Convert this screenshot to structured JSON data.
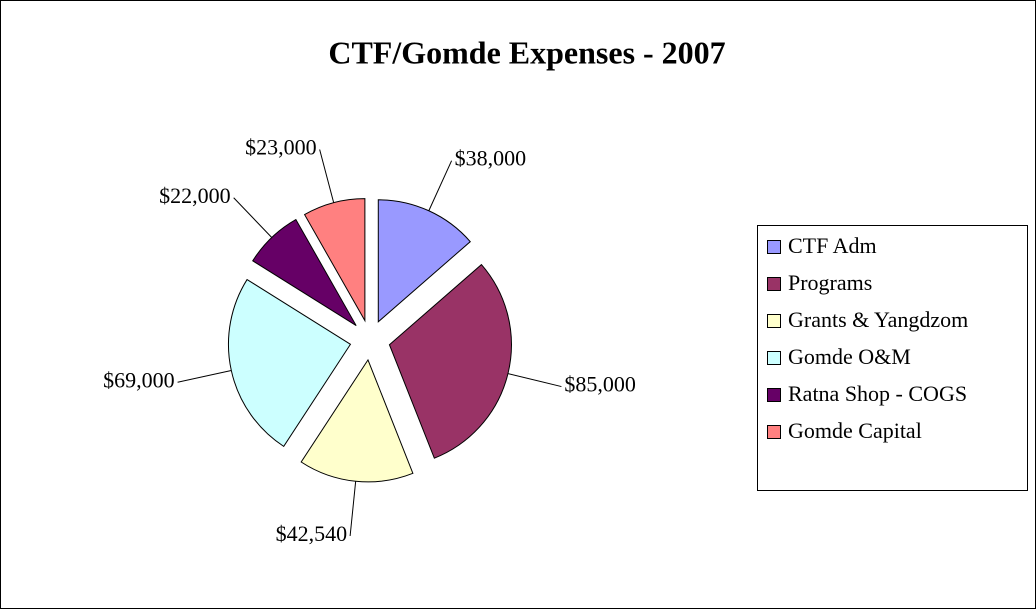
{
  "chart_data": {
    "type": "pie",
    "title": "CTF/Gomde Expenses - 2007",
    "categories": [
      "CTF Adm",
      "Programs",
      "Grants & Yangdzom",
      "Gomde O&M",
      "Ratna Shop - COGS",
      "Gomde Capital"
    ],
    "values": [
      38000,
      85000,
      42540,
      69000,
      22000,
      23000
    ],
    "value_labels": [
      "$38,000",
      "$85,000",
      "$42,540",
      "$69,000",
      "$22,000",
      "$23,000"
    ],
    "colors": [
      "#9999ff",
      "#993366",
      "#ffffcc",
      "#ccffff",
      "#660066",
      "#ff8080"
    ],
    "legend": "right"
  }
}
